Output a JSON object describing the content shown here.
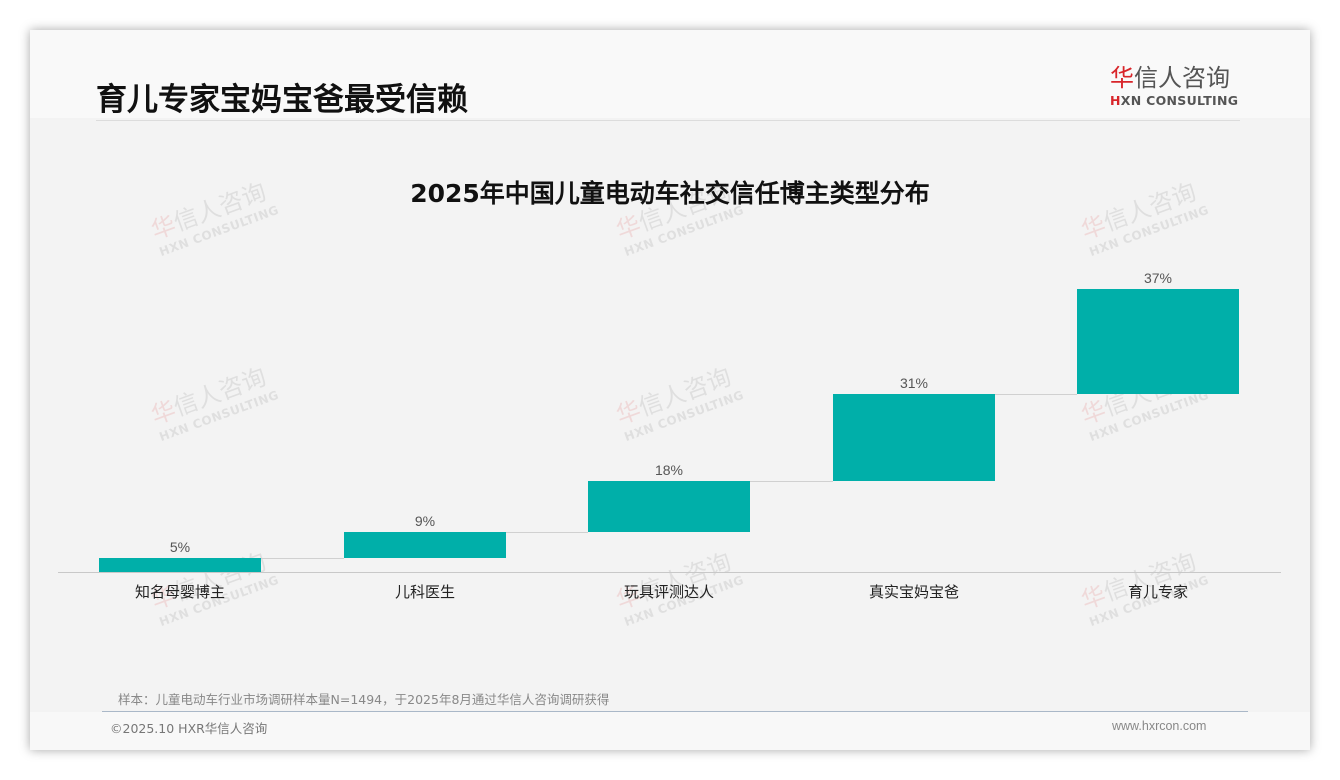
{
  "page": {
    "title": "育儿专家宝妈宝爸最受信赖"
  },
  "logo": {
    "cn_first": "华",
    "cn_rest": "信人咨询",
    "en_first": "H",
    "en_rest": "XN CONSULTING"
  },
  "watermark": {
    "cn_first": "华",
    "cn_rest": "信人咨询",
    "en": "HXN CONSULTING"
  },
  "chart_data": {
    "type": "bar",
    "style": "waterfall",
    "title": "2025年中国儿童电动车社交信任博主类型分布",
    "categories": [
      "知名母婴博主",
      "儿科医生",
      "玩具评测达人",
      "真实宝妈宝爸",
      "育儿专家"
    ],
    "values": [
      5,
      9,
      18,
      31,
      37
    ],
    "value_labels": [
      "5%",
      "9%",
      "18%",
      "31%",
      "37%"
    ],
    "cumulative_start": [
      0,
      5,
      14,
      32,
      63
    ],
    "cumulative_end": [
      5,
      14,
      32,
      63,
      100
    ],
    "xlabel": "",
    "ylabel": "",
    "ylim": [
      0,
      100
    ],
    "unit": "%",
    "grid": false,
    "legend": null,
    "bar_color": "#00afa9"
  },
  "footer": {
    "note": "样本：儿童电动车行业市场调研样本量N=1494，于2025年8月通过华信人咨询调研获得",
    "copyright": "©2025.10 HXR华信人咨询",
    "website": "www.hxrcon.com"
  }
}
